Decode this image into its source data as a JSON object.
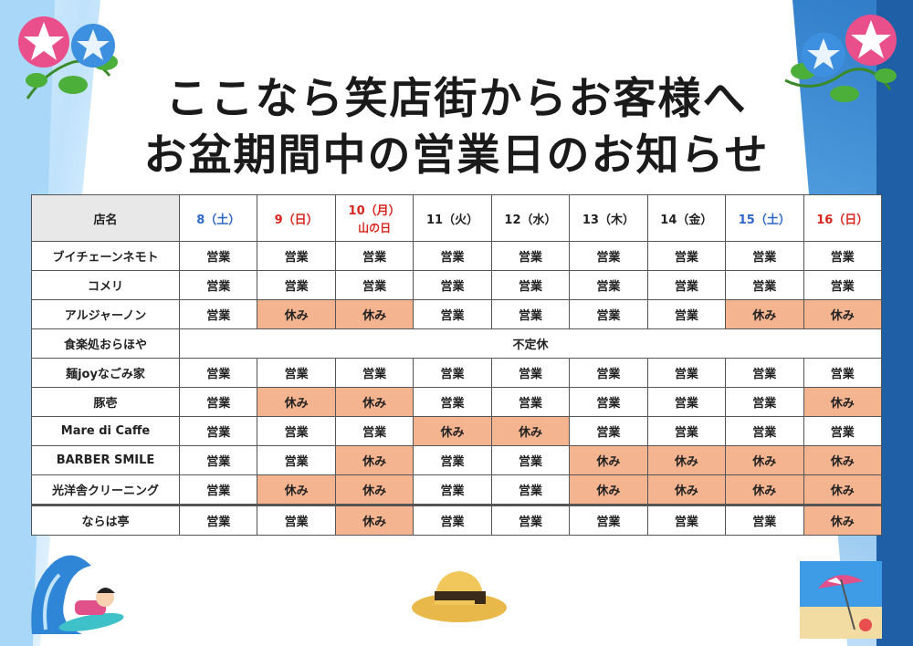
{
  "title": {
    "line1": "ここなら笑店街からお客様へ",
    "line2": "お盆期間中の営業日のお知らせ"
  },
  "header": {
    "shop_col": "店名",
    "days": [
      {
        "label": "8（土）",
        "sub": "",
        "color": "#2f67c5"
      },
      {
        "label": "9（日）",
        "sub": "",
        "color": "#d8261f"
      },
      {
        "label": "10（月）",
        "sub": "山の日",
        "color": "#d8261f"
      },
      {
        "label": "11（火）",
        "sub": "",
        "color": "#222222"
      },
      {
        "label": "12（水）",
        "sub": "",
        "color": "#222222"
      },
      {
        "label": "13（木）",
        "sub": "",
        "color": "#222222"
      },
      {
        "label": "14（金）",
        "sub": "",
        "color": "#222222"
      },
      {
        "label": "15（土）",
        "sub": "",
        "color": "#2f67c5"
      },
      {
        "label": "16（日）",
        "sub": "",
        "color": "#d8261f"
      }
    ]
  },
  "status_labels": {
    "open": "営業",
    "closed": "休み"
  },
  "shops": [
    {
      "name": "ブイチェーンネモト",
      "days": [
        "営業",
        "営業",
        "営業",
        "営業",
        "営業",
        "営業",
        "営業",
        "営業",
        "営業"
      ]
    },
    {
      "name": "コメリ",
      "days": [
        "営業",
        "営業",
        "営業",
        "営業",
        "営業",
        "営業",
        "営業",
        "営業",
        "営業"
      ]
    },
    {
      "name": "アルジャーノン",
      "days": [
        "営業",
        "休み",
        "休み",
        "営業",
        "営業",
        "営業",
        "営業",
        "休み",
        "休み"
      ]
    },
    {
      "name": "食楽処おらほや",
      "merged": "不定休"
    },
    {
      "name": "麺joyなごみ家",
      "days": [
        "営業",
        "営業",
        "営業",
        "営業",
        "営業",
        "営業",
        "営業",
        "営業",
        "営業"
      ]
    },
    {
      "name": "豚壱",
      "days": [
        "営業",
        "休み",
        "休み",
        "営業",
        "営業",
        "営業",
        "営業",
        "営業",
        "休み"
      ]
    },
    {
      "name": "Mare di Caffe",
      "days": [
        "営業",
        "営業",
        "営業",
        "休み",
        "休み",
        "営業",
        "営業",
        "営業",
        "営業"
      ]
    },
    {
      "name": "BARBER SMILE",
      "days": [
        "営業",
        "営業",
        "休み",
        "営業",
        "営業",
        "休み",
        "休み",
        "休み",
        "休み"
      ]
    },
    {
      "name": "光洋舎クリーニング",
      "days": [
        "営業",
        "休み",
        "休み",
        "営業",
        "営業",
        "休み",
        "休み",
        "休み",
        "休み"
      ]
    },
    {
      "name": "ならは亭",
      "days": [
        "営業",
        "営業",
        "休み",
        "営業",
        "営業",
        "営業",
        "営業",
        "営業",
        "休み"
      ]
    }
  ],
  "colors": {
    "closed_bg": "#f4b48f",
    "header_gray": "#e8e8e8"
  },
  "decorations": [
    "morning-glory-left",
    "morning-glory-right",
    "surfer-girl",
    "straw-hat",
    "beach-umbrella"
  ]
}
